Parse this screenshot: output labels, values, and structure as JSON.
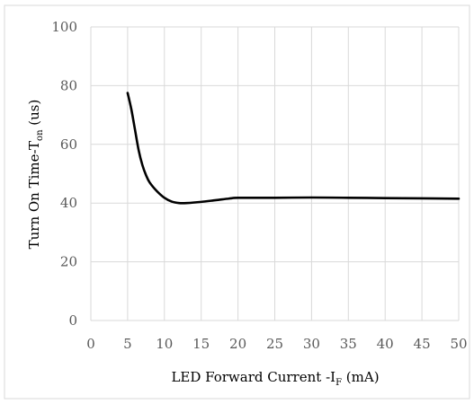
{
  "chart_data": {
    "type": "line",
    "title": "",
    "xlabel": {
      "prefix": "LED Forward Current -I",
      "subscript": "F",
      "suffix": " (mA)"
    },
    "ylabel": {
      "prefix": "Turn On Time-T",
      "subscript": "on",
      "suffix": " (us)"
    },
    "xlim": [
      0,
      50
    ],
    "ylim": [
      0,
      100
    ],
    "xticks": [
      "0",
      "5",
      "10",
      "15",
      "20",
      "25",
      "30",
      "35",
      "40",
      "45",
      "50"
    ],
    "yticks": [
      "0",
      "20",
      "40",
      "60",
      "80",
      "100"
    ],
    "grid": true,
    "legend": "none",
    "series": [
      {
        "color": "#000000",
        "points": [
          [
            5,
            77.5
          ],
          [
            5.5,
            72
          ],
          [
            6,
            65
          ],
          [
            6.5,
            58
          ],
          [
            7,
            53
          ],
          [
            7.5,
            49.5
          ],
          [
            8,
            47
          ],
          [
            9,
            44
          ],
          [
            10,
            41.8
          ],
          [
            11,
            40.5
          ],
          [
            12,
            40
          ],
          [
            13,
            40
          ],
          [
            15,
            40.4
          ],
          [
            17,
            41
          ],
          [
            19,
            41.6
          ],
          [
            20,
            41.8
          ],
          [
            25,
            41.8
          ],
          [
            30,
            41.9
          ],
          [
            35,
            41.8
          ],
          [
            40,
            41.7
          ],
          [
            45,
            41.6
          ],
          [
            50,
            41.5
          ]
        ]
      }
    ]
  }
}
